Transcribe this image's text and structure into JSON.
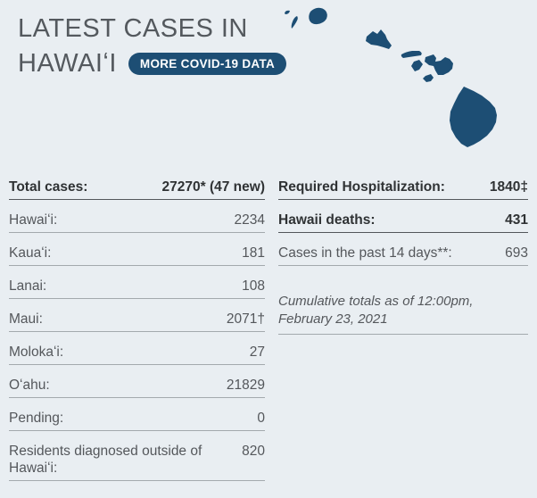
{
  "colors": {
    "background": "#e9eef2",
    "accent_blue": "#1d4e74",
    "title_gray": "#54595e",
    "text_bold": "#2f3234",
    "text_regular": "#54575b"
  },
  "header": {
    "title_line1": "LATEST CASES IN",
    "title_line2": "HAWAIʻI",
    "more_data_button": "MORE COVID-19 DATA"
  },
  "map": {
    "fill": "#1d4e74",
    "islands": [
      "Lehua",
      "Niʻihau",
      "Kauaʻi",
      "Oʻahu",
      "Molokaʻi",
      "Lānaʻi",
      "Maui",
      "Kahoʻolawe",
      "Hawaiʻi"
    ]
  },
  "left_table": {
    "rows": [
      {
        "label": "Total cases:",
        "value": "27270* (47 new)",
        "bold": true
      },
      {
        "label": "Hawaiʻi:",
        "value": "2234",
        "bold": false
      },
      {
        "label": "Kauaʻi:",
        "value": "181",
        "bold": false
      },
      {
        "label": "Lanai:",
        "value": "108",
        "bold": false
      },
      {
        "label": "Maui:",
        "value": "2071†",
        "bold": false
      },
      {
        "label": "Molokaʻi:",
        "value": "27",
        "bold": false
      },
      {
        "label": "Oʻahu:",
        "value": "21829",
        "bold": false
      },
      {
        "label": "Pending:",
        "value": "0",
        "bold": false
      },
      {
        "label": "Residents diagnosed outside of Hawaiʻi:",
        "value": "820",
        "bold": false
      }
    ]
  },
  "right_table": {
    "rows": [
      {
        "label": "Required Hospitalization:",
        "value": "1840‡",
        "bold": true
      },
      {
        "label": "Hawaii deaths:",
        "value": "431",
        "bold": true
      },
      {
        "label": "Cases in the past 14 days**:",
        "value": "693",
        "bold": false
      }
    ],
    "note": "Cumulative totals as of 12:00pm, February 23, 2021"
  }
}
